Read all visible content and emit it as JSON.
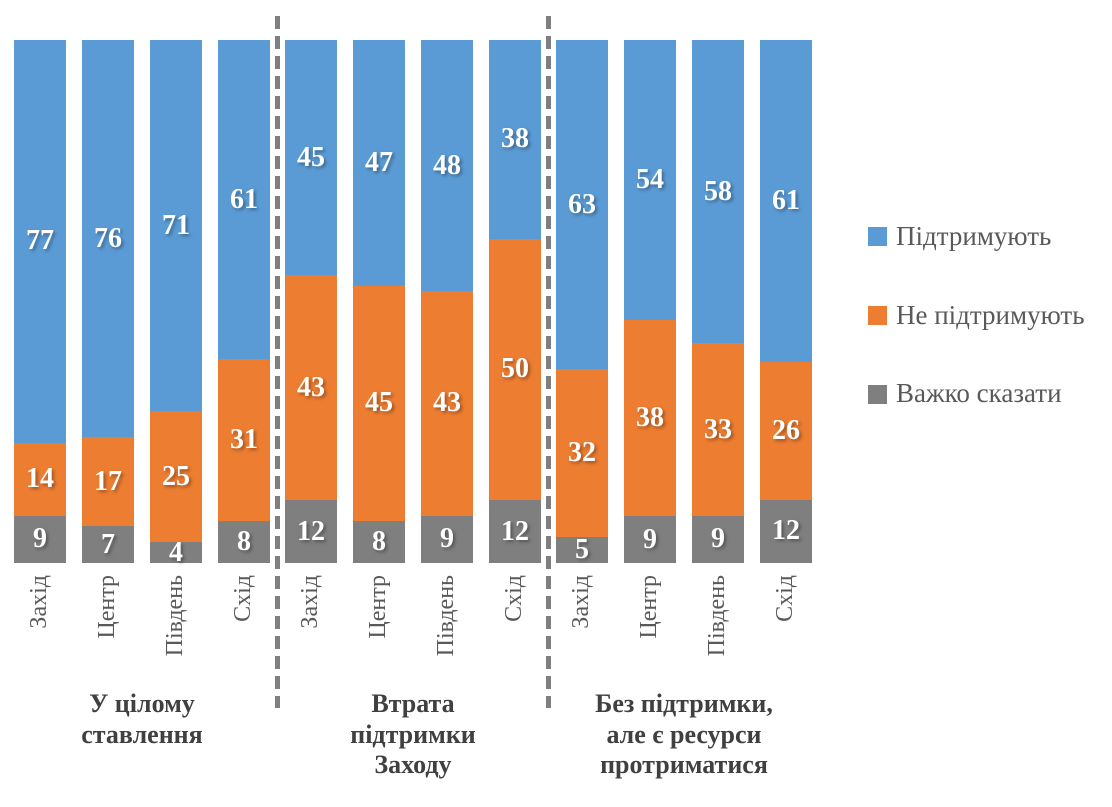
{
  "chart_data": {
    "type": "bar",
    "subtype": "stacked-100-column",
    "orientation": "vertical",
    "grid": false,
    "ylim": [
      0,
      100
    ],
    "legend_position": "right",
    "colors": {
      "support": "#5B9BD5",
      "oppose": "#ED7D31",
      "hard_to_say": "#7F7F7F",
      "separator": "#7F7F7F"
    },
    "series": [
      {
        "name": "Підтримують",
        "color": "#5B9BD5"
      },
      {
        "name": "Не підтримують",
        "color": "#ED7D31"
      },
      {
        "name": "Важко сказати",
        "color": "#7F7F7F"
      }
    ],
    "value_order_note": "values = [Підтримують, Не підтримують, Важко сказати]",
    "groups": [
      {
        "label": "У цілому ставлення",
        "bars": [
          {
            "category": "Захід",
            "values": [
              77,
              14,
              9
            ]
          },
          {
            "category": "Центр",
            "values": [
              76,
              17,
              7
            ]
          },
          {
            "category": "Південь",
            "values": [
              71,
              25,
              4
            ]
          },
          {
            "category": "Схід",
            "values": [
              61,
              31,
              8
            ]
          }
        ]
      },
      {
        "label": "Втрата підтримки Заходу",
        "bars": [
          {
            "category": "Захід",
            "values": [
              45,
              43,
              12
            ]
          },
          {
            "category": "Центр",
            "values": [
              47,
              45,
              8
            ]
          },
          {
            "category": "Південь",
            "values": [
              48,
              43,
              9
            ]
          },
          {
            "category": "Схід",
            "values": [
              38,
              50,
              12
            ]
          }
        ]
      },
      {
        "label": "Без підтримки, але є ресурси протриматися",
        "bars": [
          {
            "category": "Захід",
            "values": [
              63,
              32,
              5
            ]
          },
          {
            "category": "Центр",
            "values": [
              54,
              38,
              9
            ]
          },
          {
            "category": "Південь",
            "values": [
              58,
              33,
              9
            ]
          },
          {
            "category": "Схід",
            "values": [
              61,
              26,
              12
            ]
          }
        ]
      }
    ]
  }
}
